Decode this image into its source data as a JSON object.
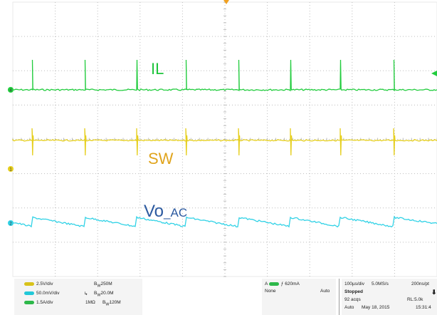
{
  "trace_labels": {
    "il": "IL",
    "sw": "SW",
    "vo_main": "Vo",
    "vo_sub": "_AC"
  },
  "colors": {
    "background": "#ffffff",
    "grid": "#bdbdbd",
    "frame": "#e8e8e8",
    "il_trace": "#22cc3e",
    "sw_trace": "#e6cf1e",
    "vo_trace": "#31d2e6",
    "trigger_marker": "#f0a020"
  },
  "channel_markers": {
    "ch4": "4",
    "ch1": "1",
    "ch2": "2"
  },
  "channels": [
    {
      "color": "yellow",
      "scale": "2.5V/div",
      "bw": "250M",
      "bw_prefix": "B",
      "bw_sub": "W"
    },
    {
      "color": "cyan",
      "scale": "50.0mV/div",
      "bw": "20.0M",
      "bw_prefix": "B",
      "bw_sub": "W"
    },
    {
      "color": "green",
      "scale": "1.5A/div",
      "impedance": "1MΩ",
      "bw": "120M",
      "bw_prefix": "B",
      "bw_sub": "W"
    }
  ],
  "trigger": {
    "source": "A",
    "level": "620mA",
    "coupling": "None",
    "mode": "Auto"
  },
  "acquisition": {
    "timebase": "100µs/div",
    "sample_rate": "5.0MS/s",
    "resolution": "200ns/pt",
    "state": "Stopped",
    "acqs": "92 acqs",
    "record_length": "RL:5.0k",
    "mode": "Auto",
    "date": "May 18, 2015",
    "time": "15:31:4"
  }
}
